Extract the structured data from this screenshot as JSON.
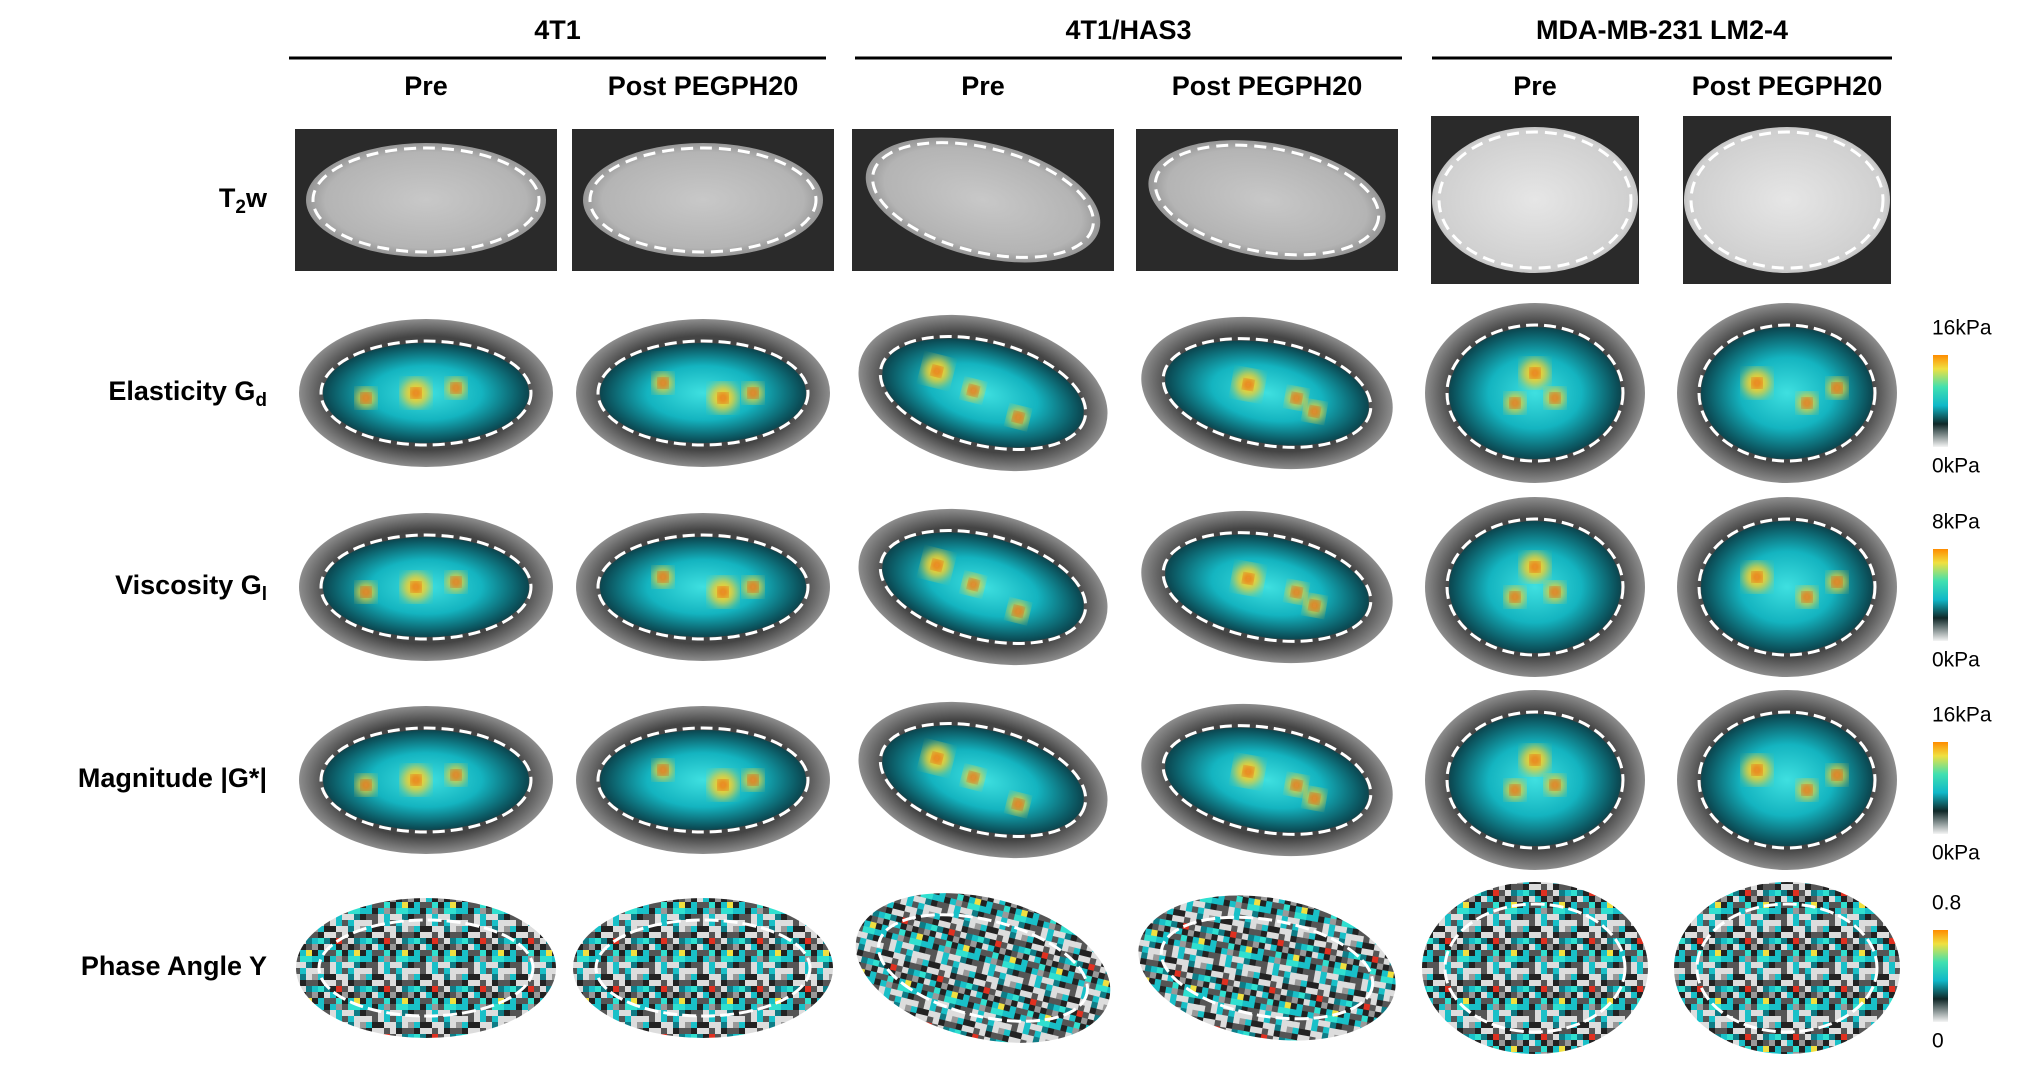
{
  "groups": [
    {
      "label": "4T1",
      "conditions": [
        "Pre",
        "Post PEGPH20"
      ]
    },
    {
      "label": "4T1/HAS3",
      "conditions": [
        "Pre",
        "Post PEGPH20"
      ]
    },
    {
      "label": "MDA-MB-231 LM2-4",
      "conditions": [
        "Pre",
        "Post PEGPH20"
      ]
    }
  ],
  "rows": [
    {
      "label": "T",
      "subscript": "2",
      "suffix": "w"
    },
    {
      "label": "Elasticity G",
      "subscript": "d"
    },
    {
      "label": "Viscosity G",
      "subscript": "l"
    },
    {
      "label": "Magnitude |G*|"
    },
    {
      "label": "Phase Angle Y"
    }
  ],
  "colorbars": [
    {
      "max": "16kPa",
      "min": "0kPa"
    },
    {
      "max": "8kPa",
      "min": "0kPa"
    },
    {
      "max": "16kPa",
      "min": "0kPa"
    },
    {
      "max": "0.8",
      "min": "0"
    }
  ]
}
